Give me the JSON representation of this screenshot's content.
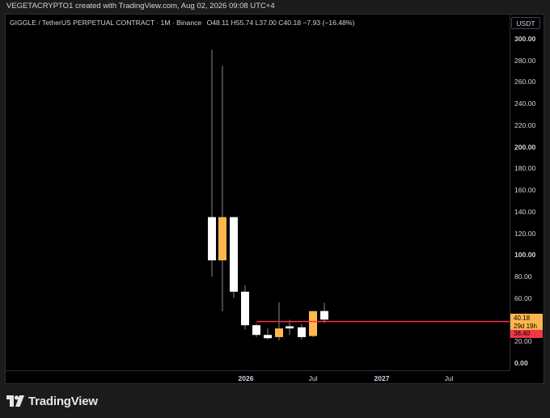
{
  "header": {
    "text": "VEGETACRYPTO1 created with TradingView.com, Aug 02, 2026 09:08 UTC+4"
  },
  "legend": {
    "symbol": "GIGGLE / TetherUS PERPETUAL CONTRACT · 1M · Binance",
    "ohlc": "O48.11  H55.74  L37.00  C40.18  −7.93 (−16.48%)"
  },
  "price_axis": {
    "currency": "USDT",
    "ticks": [
      {
        "label": "300.00",
        "value": 300,
        "bold": true
      },
      {
        "label": "280.00",
        "value": 280,
        "bold": false
      },
      {
        "label": "260.00",
        "value": 260,
        "bold": false
      },
      {
        "label": "240.00",
        "value": 240,
        "bold": false
      },
      {
        "label": "220.00",
        "value": 220,
        "bold": false
      },
      {
        "label": "200.00",
        "value": 200,
        "bold": true
      },
      {
        "label": "180.00",
        "value": 180,
        "bold": false
      },
      {
        "label": "160.00",
        "value": 160,
        "bold": false
      },
      {
        "label": "140.00",
        "value": 140,
        "bold": false
      },
      {
        "label": "120.00",
        "value": 120,
        "bold": false
      },
      {
        "label": "100.00",
        "value": 100,
        "bold": true
      },
      {
        "label": "80.00",
        "value": 80,
        "bold": false
      },
      {
        "label": "60.00",
        "value": 60,
        "bold": false
      },
      {
        "label": "20.00",
        "value": 20,
        "bold": false
      },
      {
        "label": "0.00",
        "value": 0,
        "bold": true
      }
    ]
  },
  "time_axis": {
    "ticks": [
      {
        "label": "2026",
        "bold": true
      },
      {
        "label": "Jul",
        "bold": false
      },
      {
        "label": "2027",
        "bold": true
      },
      {
        "label": "Jul",
        "bold": false
      }
    ]
  },
  "price_tags": {
    "last_price": "40.18",
    "countdown": "29d 19h",
    "line_price": "38.40",
    "last_color": "#ffb74d",
    "line_color": "#f23645"
  },
  "colors": {
    "up": "#ffffff",
    "down": "#ffb74d",
    "wick": "#8a8a8a",
    "hline": "#f23645"
  },
  "footer": {
    "brand": "TradingView",
    "logo_icon": "tradingview-logo-icon"
  },
  "chart_data": {
    "type": "candlestick",
    "title": "GIGGLE / TetherUS PERPETUAL CONTRACT · 1M · Binance",
    "ylim": [
      0,
      300
    ],
    "horizontal_line": 38.4,
    "candles": [
      {
        "o": 95,
        "h": 290,
        "l": 80,
        "c": 135,
        "color": "up"
      },
      {
        "o": 135,
        "h": 275,
        "l": 48,
        "c": 95,
        "color": "down"
      },
      {
        "o": 135,
        "h": 135,
        "l": 60,
        "c": 66,
        "color": "up"
      },
      {
        "o": 66,
        "h": 72,
        "l": 31,
        "c": 35,
        "color": "up"
      },
      {
        "o": 35,
        "h": 36,
        "l": 24,
        "c": 26,
        "color": "up"
      },
      {
        "o": 26,
        "h": 32,
        "l": 22,
        "c": 23,
        "color": "up"
      },
      {
        "o": 24,
        "h": 56,
        "l": 21,
        "c": 32,
        "color": "down"
      },
      {
        "o": 32,
        "h": 40,
        "l": 26,
        "c": 34,
        "color": "up"
      },
      {
        "o": 24,
        "h": 36,
        "l": 22,
        "c": 33,
        "color": "up"
      },
      {
        "o": 25,
        "h": 48,
        "l": 24,
        "c": 48,
        "color": "down"
      },
      {
        "o": 48.11,
        "h": 55.74,
        "l": 37.0,
        "c": 40.18,
        "color": "up"
      }
    ]
  }
}
